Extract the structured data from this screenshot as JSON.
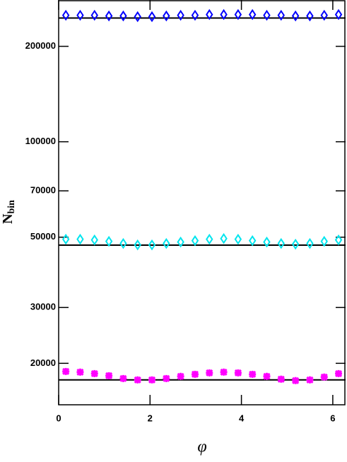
{
  "chart_data": {
    "type": "scatter",
    "x_label": "φ",
    "y_label": "N",
    "y_label_subscript": "bin",
    "x": [
      0.157,
      0.471,
      0.785,
      1.1,
      1.414,
      1.728,
      2.042,
      2.356,
      2.67,
      2.985,
      3.299,
      3.613,
      3.927,
      4.241,
      4.555,
      4.869,
      5.184,
      5.498,
      5.812,
      6.126
    ],
    "series": [
      {
        "color": "#0000ff",
        "marker": "diamond",
        "values": [
          250600,
          250600,
          250600,
          249400,
          249400,
          248100,
          248100,
          249400,
          250600,
          250600,
          251900,
          251900,
          251900,
          251900,
          250600,
          250600,
          249400,
          249400,
          250600,
          251900
        ]
      },
      {
        "color": "#00e5ee",
        "marker": "diamond",
        "values": [
          49260,
          49260,
          49000,
          48500,
          47760,
          47280,
          47280,
          47760,
          48260,
          48760,
          49260,
          49500,
          49260,
          48760,
          48260,
          47760,
          47520,
          47760,
          48500,
          49000
        ]
      },
      {
        "color": "#ff00ff",
        "marker": "star",
        "values": [
          18850,
          18760,
          18560,
          18280,
          17910,
          17730,
          17730,
          17910,
          18190,
          18470,
          18660,
          18760,
          18660,
          18470,
          18190,
          17820,
          17640,
          17730,
          18100,
          18560
        ]
      }
    ],
    "reference_lines": [
      245600,
      47200,
      17730
    ],
    "xlim": [
      0,
      6.28
    ],
    "xticks": [
      0,
      2,
      4,
      6
    ],
    "ylim": [
      14800,
      280000
    ],
    "yticks": [
      20000,
      30000,
      50000,
      70000,
      100000,
      200000
    ],
    "log_y": true
  }
}
